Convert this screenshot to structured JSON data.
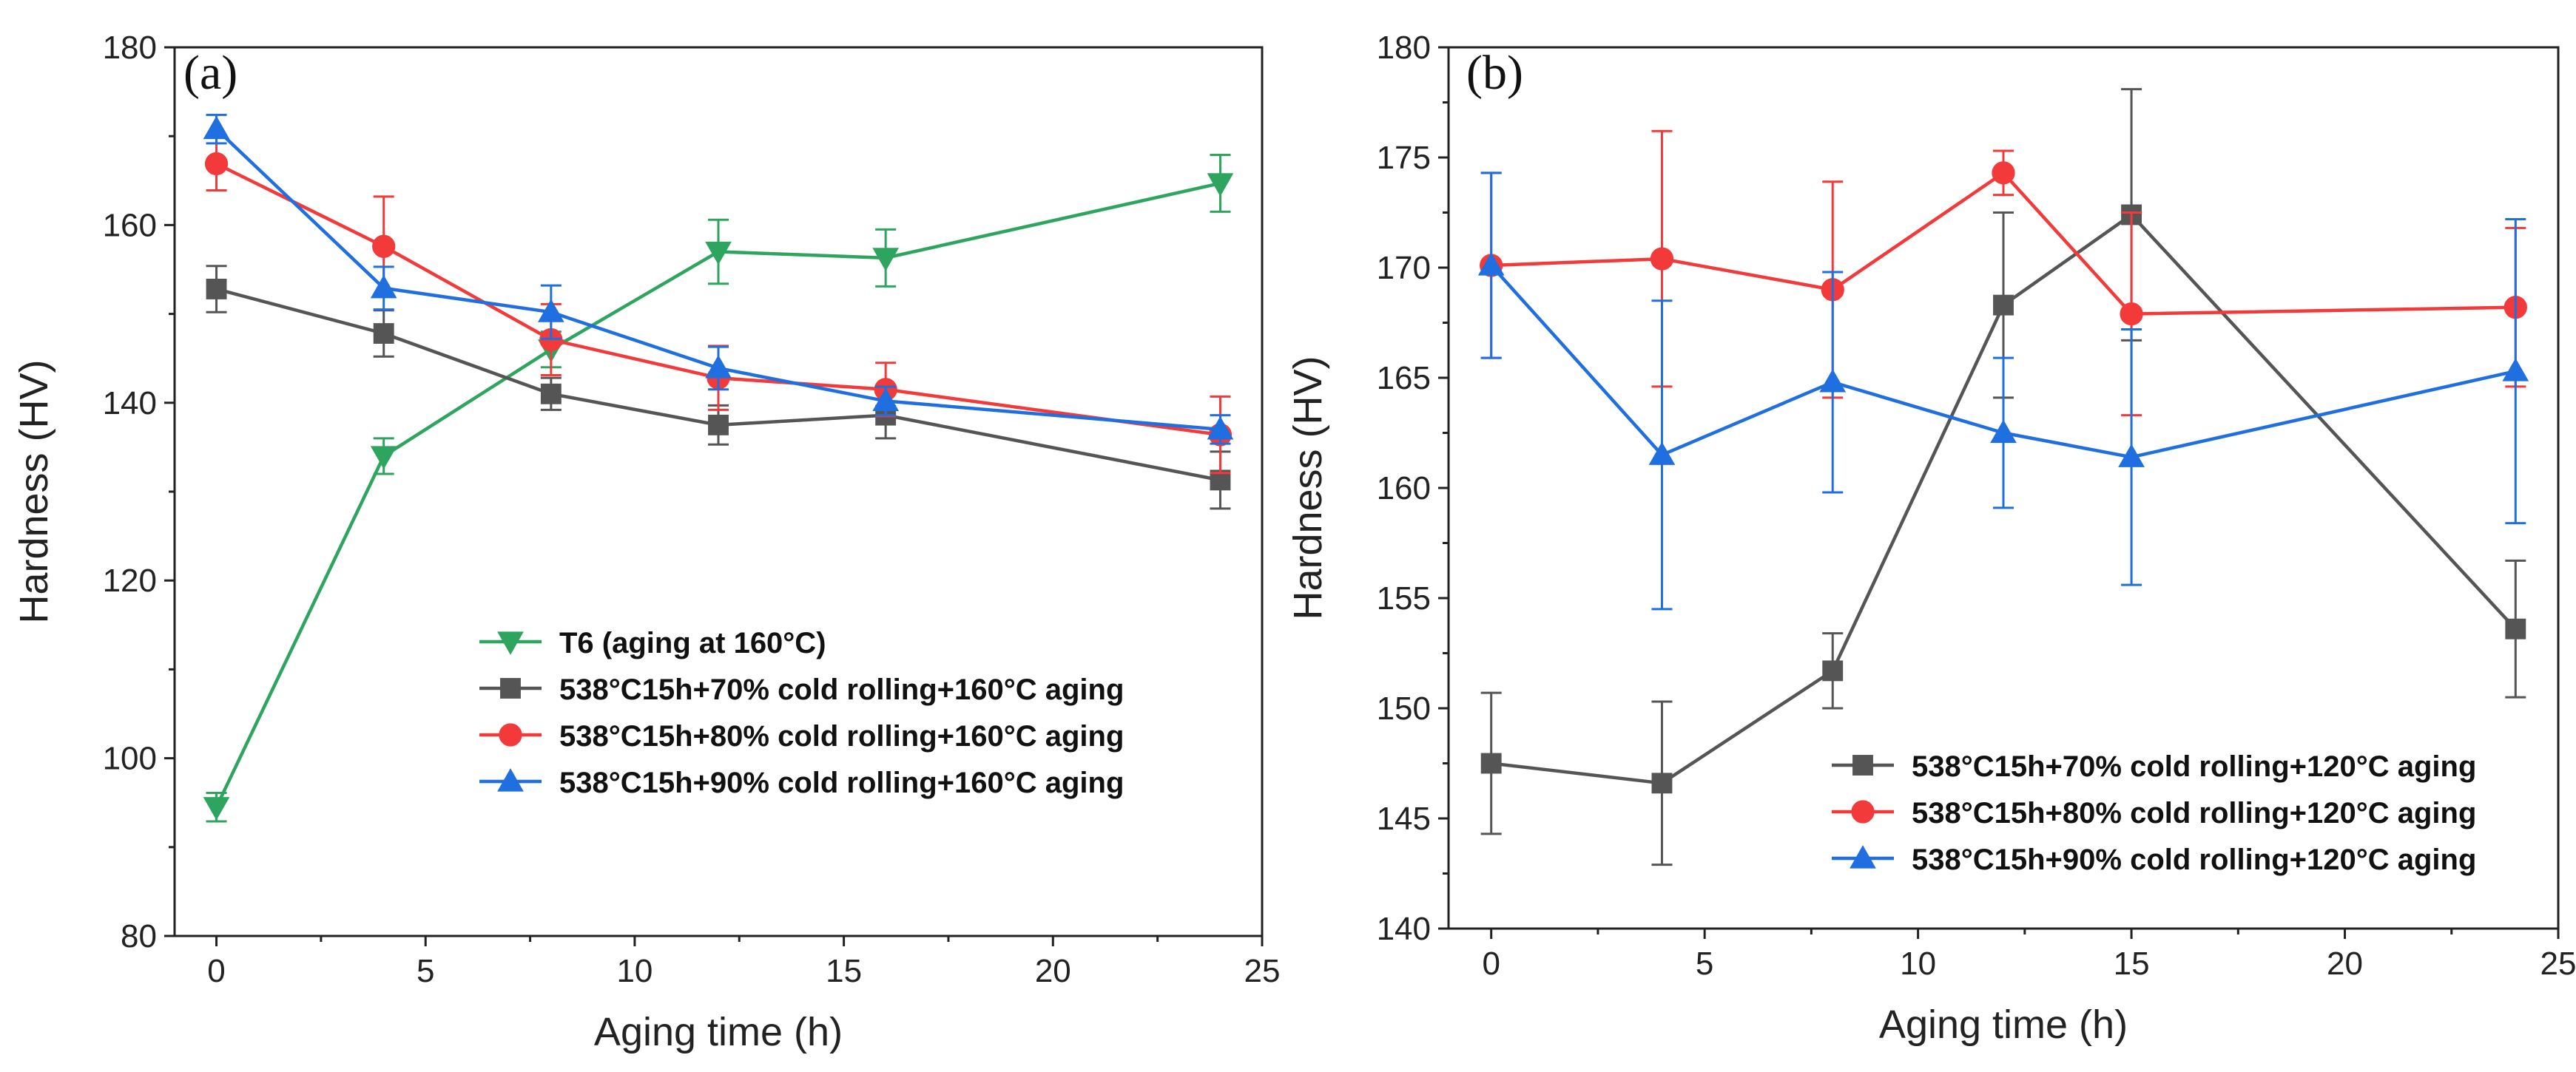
{
  "chart_data": [
    {
      "type": "line",
      "panel_label": "(a)",
      "xlabel": "Aging time (h)",
      "ylabel": "Hardness (HV)",
      "xlim": [
        -1,
        25
      ],
      "ylim": [
        80,
        180
      ],
      "xticks": [
        0,
        5,
        10,
        15,
        20,
        25
      ],
      "yticks": [
        80,
        100,
        120,
        140,
        160,
        180
      ],
      "grid": false,
      "legend_position": "center-right",
      "series": [
        {
          "name": "T6 (aging at 160°C)",
          "color": "#2ea55f",
          "marker": "triangle-down",
          "x": [
            0,
            4,
            8,
            12,
            16,
            24
          ],
          "y": [
            94.5,
            134,
            146,
            157,
            156.3,
            164.7
          ],
          "err": [
            1.6,
            2,
            2,
            3.6,
            3.2,
            3.2
          ]
        },
        {
          "name": "538°C15h+70% cold rolling+160°C aging",
          "color": "#555555",
          "marker": "square",
          "x": [
            0,
            4,
            8,
            12,
            16,
            24
          ],
          "y": [
            152.8,
            147.8,
            141,
            137.5,
            138.6,
            131.3
          ],
          "err": [
            2.6,
            2.6,
            1.8,
            2.2,
            2.6,
            3.2
          ]
        },
        {
          "name": "538°C15h+80% cold rolling+160°C aging",
          "color": "#f23a3a",
          "marker": "circle",
          "x": [
            0,
            4,
            8,
            12,
            16,
            24
          ],
          "y": [
            166.9,
            157.6,
            147.1,
            142.8,
            141.5,
            136.4
          ],
          "err": [
            3,
            5.6,
            4,
            3.6,
            3,
            4.3
          ]
        },
        {
          "name": "538°C15h+90% cold rolling+160°C aging",
          "color": "#1f6fe0",
          "marker": "triangle-up",
          "x": [
            0,
            4,
            8,
            12,
            16,
            24
          ],
          "y": [
            170.8,
            152.9,
            150.2,
            143.9,
            140.2,
            137
          ],
          "err": [
            1.6,
            2.4,
            3,
            2.4,
            1.6,
            1.6
          ]
        }
      ]
    },
    {
      "type": "line",
      "panel_label": "(b)",
      "xlabel": "Aging time (h)",
      "ylabel": "Hardness (HV)",
      "xlim": [
        -1,
        25
      ],
      "ylim": [
        140,
        180
      ],
      "xticks": [
        0,
        5,
        10,
        15,
        20,
        25
      ],
      "yticks": [
        140,
        145,
        150,
        155,
        160,
        165,
        170,
        175,
        180
      ],
      "grid": false,
      "legend_position": "bottom-right",
      "series": [
        {
          "name": "538°C15h+70% cold rolling+120°C aging",
          "color": "#555555",
          "marker": "square",
          "x": [
            0,
            4,
            8,
            12,
            15,
            24
          ],
          "y": [
            147.5,
            146.6,
            151.7,
            168.3,
            172.4,
            153.6
          ],
          "err": [
            3.2,
            3.7,
            1.7,
            4.2,
            5.7,
            3.1
          ]
        },
        {
          "name": "538°C15h+80% cold rolling+120°C aging",
          "color": "#f23a3a",
          "marker": "circle",
          "x": [
            0,
            4,
            8,
            12,
            15,
            24
          ],
          "y": [
            170.1,
            170.4,
            169,
            174.3,
            167.9,
            168.2
          ],
          "err": [
            4.2,
            5.8,
            4.9,
            1,
            4.6,
            3.6
          ]
        },
        {
          "name": "538°C15h+90% cold rolling+120°C aging",
          "color": "#1f6fe0",
          "marker": "triangle-up",
          "x": [
            0,
            4,
            8,
            12,
            15,
            24
          ],
          "y": [
            170.1,
            161.5,
            164.8,
            162.5,
            161.4,
            165.3
          ],
          "err": [
            4.2,
            7,
            5,
            3.4,
            5.8,
            6.9
          ]
        }
      ]
    }
  ]
}
